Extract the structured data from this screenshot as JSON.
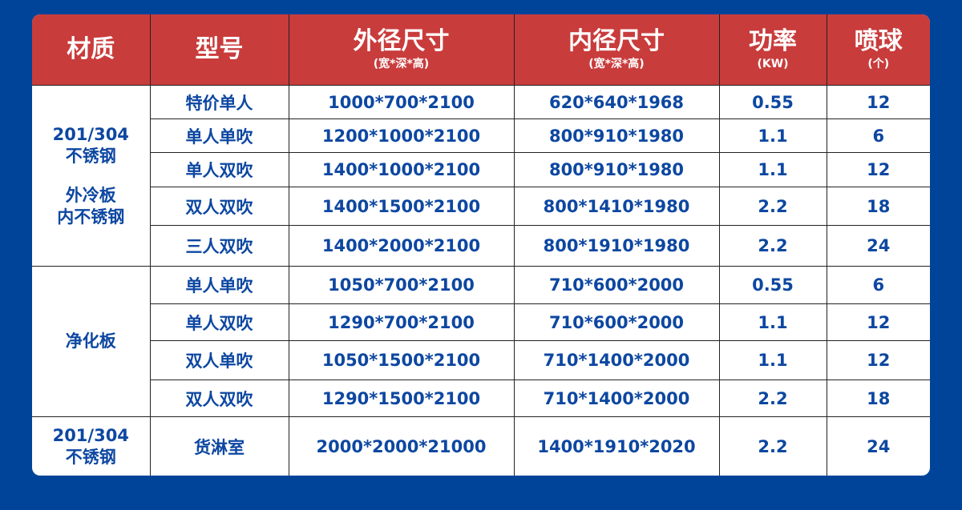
{
  "header": [
    {
      "main": "材质",
      "sub": ""
    },
    {
      "main": "型号",
      "sub": ""
    },
    {
      "main": "外径尺寸",
      "sub": "(宽*深*高)"
    },
    {
      "main": "内径尺寸",
      "sub": "(宽*深*高)"
    },
    {
      "main": "功率",
      "sub": "(KW)"
    },
    {
      "main": "喷球",
      "sub": "(个)"
    }
  ],
  "groups": [
    {
      "material": [
        "201/304",
        "不锈钢",
        "外冷板",
        "内不锈钢"
      ],
      "rows": [
        [
          "特价单人",
          "1000*700*2100",
          "620*640*1968",
          "0.55",
          "12"
        ],
        [
          "单人单吹",
          "1200*1000*2100",
          "800*910*1980",
          "1.1",
          "6"
        ],
        [
          "单人双吹",
          "1400*1000*2100",
          "800*910*1980",
          "1.1",
          "12"
        ],
        [
          "双人双吹",
          "1400*1500*2100",
          "800*1410*1980",
          "2.2",
          "18"
        ],
        [
          "三人双吹",
          "1400*2000*2100",
          "800*1910*1980",
          "2.2",
          "24"
        ]
      ]
    },
    {
      "material": [
        "净化板"
      ],
      "rows": [
        [
          "单人单吹",
          "1050*700*2100",
          "710*600*2000",
          "0.55",
          "6"
        ],
        [
          "单人双吹",
          "1290*700*2100",
          "710*600*2000",
          "1.1",
          "12"
        ],
        [
          "双人单吹",
          "1050*1500*2100",
          "710*1400*2000",
          "1.1",
          "12"
        ],
        [
          "双人双吹",
          "1290*1500*2100",
          "710*1400*2000",
          "2.2",
          "18"
        ]
      ]
    },
    {
      "material": [
        "201/304",
        "不锈钢"
      ],
      "rows": [
        [
          "货淋室",
          "2000*2000*21000",
          "1400*1910*2020",
          "2.2",
          "24"
        ]
      ]
    }
  ],
  "colors": {
    "background": "#00449a",
    "header": "#c93c3c",
    "text": "#0d47a1"
  }
}
